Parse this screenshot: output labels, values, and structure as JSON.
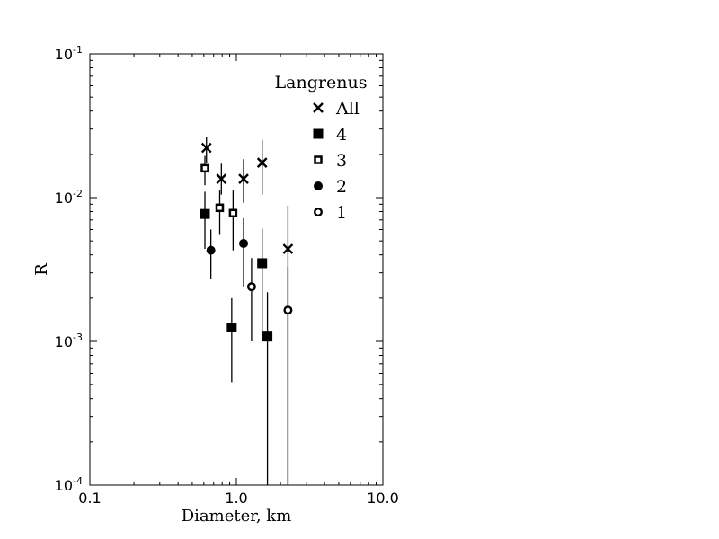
{
  "chart_data": {
    "type": "scatter",
    "xlabel": "Diameter, km",
    "ylabel": "R",
    "xscale": "log",
    "yscale": "log",
    "xlim": [
      0.1,
      10.0
    ],
    "ylim": [
      0.0001,
      0.1
    ],
    "x_ticks": [
      {
        "value": 0.1,
        "label": "0.1"
      },
      {
        "value": 1.0,
        "label": "1.0"
      },
      {
        "value": 10.0,
        "label": "10.0"
      }
    ],
    "y_ticks": [
      {
        "value": 0.0001,
        "base": "10",
        "exp": "-4"
      },
      {
        "value": 0.001,
        "base": "10",
        "exp": "-3"
      },
      {
        "value": 0.01,
        "base": "10",
        "exp": "-2"
      },
      {
        "value": 0.1,
        "base": "10",
        "exp": "-1"
      }
    ],
    "legend_title": "Langrenus",
    "legend_position": "top-right",
    "grid": false,
    "series": [
      {
        "name": "All",
        "marker": "x",
        "points": [
          {
            "x": 0.625,
            "y": 0.0222,
            "ylo": 0.0175,
            "yhi": 0.0265
          },
          {
            "x": 0.79,
            "y": 0.0135,
            "ylo": 0.0105,
            "yhi": 0.0172
          },
          {
            "x": 1.12,
            "y": 0.0135,
            "ylo": 0.0092,
            "yhi": 0.0185
          },
          {
            "x": 1.5,
            "y": 0.0175,
            "ylo": 0.0105,
            "yhi": 0.0252
          },
          {
            "x": 2.25,
            "y": 0.0044,
            "ylo": 0.0001,
            "yhi": 0.0088
          }
        ]
      },
      {
        "name": "4",
        "marker": "filled-square",
        "points": [
          {
            "x": 0.61,
            "y": 0.0077,
            "ylo": 0.0044,
            "yhi": 0.011
          },
          {
            "x": 0.93,
            "y": 0.00125,
            "ylo": 0.00052,
            "yhi": 0.002
          },
          {
            "x": 1.5,
            "y": 0.0035,
            "ylo": 0.001,
            "yhi": 0.0061
          },
          {
            "x": 1.63,
            "y": 0.00108,
            "ylo": 0.0001,
            "yhi": 0.0022
          }
        ]
      },
      {
        "name": "3",
        "marker": "open-square",
        "points": [
          {
            "x": 0.61,
            "y": 0.016,
            "ylo": 0.0122,
            "yhi": 0.0195
          },
          {
            "x": 0.77,
            "y": 0.0085,
            "ylo": 0.0055,
            "yhi": 0.0112
          },
          {
            "x": 0.95,
            "y": 0.0078,
            "ylo": 0.0043,
            "yhi": 0.0113
          }
        ]
      },
      {
        "name": "2",
        "marker": "filled-circle",
        "points": [
          {
            "x": 0.67,
            "y": 0.0043,
            "ylo": 0.0027,
            "yhi": 0.006
          },
          {
            "x": 1.12,
            "y": 0.0048,
            "ylo": 0.0024,
            "yhi": 0.0072
          }
        ]
      },
      {
        "name": "1",
        "marker": "open-circle",
        "points": [
          {
            "x": 1.27,
            "y": 0.0024,
            "ylo": 0.001,
            "yhi": 0.0038
          },
          {
            "x": 2.25,
            "y": 0.00165,
            "ylo": 0.0001,
            "yhi": 0.0033
          }
        ]
      }
    ]
  }
}
